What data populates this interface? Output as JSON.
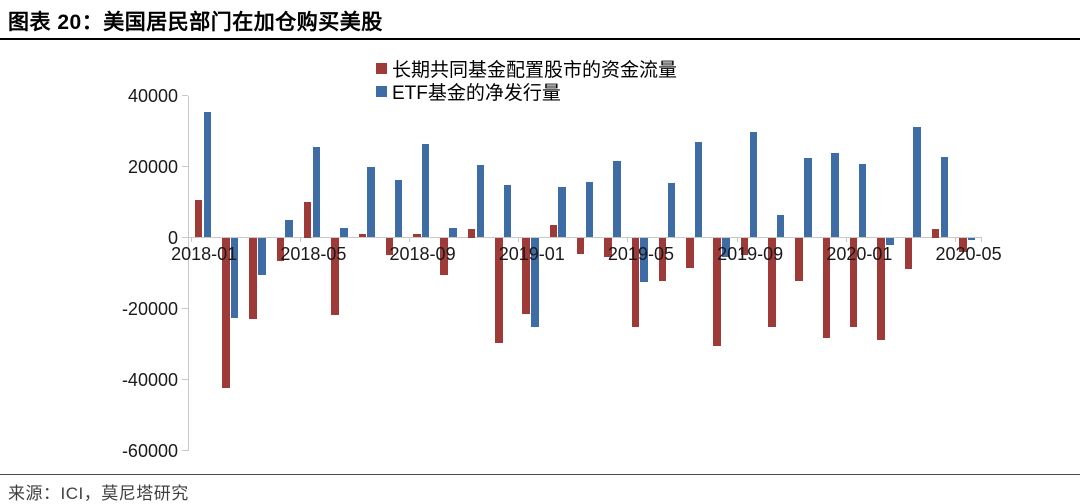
{
  "header": {
    "title": "图表 20：美国居民部门在加仓购买美股"
  },
  "footer": {
    "source": "来源：ICI，莫尼塔研究"
  },
  "colors": {
    "mutual_fund_red": "#9E3B38",
    "etf_blue": "#3E6CA5",
    "axis_gray": "#C8C8C8",
    "text_black": "#1A1A1A"
  },
  "chart_data": {
    "type": "bar",
    "title": "美国居民部门在加仓购买美股",
    "categories": [
      "2018-01",
      "2018-02",
      "2018-03",
      "2018-04",
      "2018-05",
      "2018-06",
      "2018-07",
      "2018-08",
      "2018-09",
      "2018-10",
      "2018-11",
      "2018-12",
      "2019-01",
      "2019-02",
      "2019-03",
      "2019-04",
      "2019-05",
      "2019-06",
      "2019-07",
      "2019-08",
      "2019-09",
      "2019-10",
      "2019-11",
      "2019-12",
      "2020-01",
      "2020-02",
      "2020-03",
      "2020-04",
      "2020-05"
    ],
    "series": [
      {
        "key": "mutual-fund",
        "name": "长期共同基金配置股市的资金流量",
        "color": "#9E3B38",
        "values": [
          10700,
          -42500,
          -23000,
          -6500,
          10000,
          -21900,
          1000,
          -5000,
          1000,
          -10500,
          2500,
          -29700,
          -21500,
          3600,
          -4600,
          -5500,
          -25200,
          -12300,
          -8500,
          -30500,
          -5000,
          -25300,
          -12300,
          -28300,
          -25200,
          -29000,
          -8800,
          2500,
          -4000
        ]
      },
      {
        "key": "etf",
        "name": "ETF基金的净发行量",
        "color": "#3E6CA5",
        "values": [
          35300,
          -22800,
          -10700,
          4800,
          25600,
          2600,
          19800,
          16100,
          26200,
          2600,
          20500,
          14700,
          -25300,
          14200,
          15600,
          21500,
          -12500,
          15300,
          26800,
          -5500,
          29800,
          6300,
          22300,
          23700,
          20700,
          -2100,
          31000,
          22600,
          -700
        ]
      }
    ],
    "ylim": [
      -60000,
      40000
    ],
    "ytick_interval": 20000,
    "yticks": [
      40000,
      20000,
      0,
      -20000,
      -40000,
      -60000
    ],
    "xtick_labels": [
      "2018-01",
      "2018-05",
      "2018-09",
      "2019-01",
      "2019-05",
      "2019-09",
      "2020-01",
      "2020-05"
    ],
    "xtick_label_interval": 4,
    "legend_position": "top",
    "grid": false
  }
}
